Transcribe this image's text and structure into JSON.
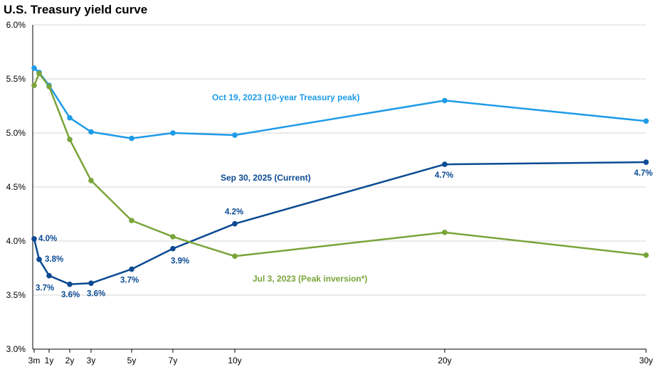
{
  "chart_data": {
    "type": "line",
    "title": "U.S. Treasury yield curve",
    "xlabel": "",
    "ylabel": "",
    "ylim": [
      3.0,
      6.0
    ],
    "y_ticks": [
      "3.0%",
      "3.5%",
      "4.0%",
      "4.5%",
      "5.0%",
      "5.5%",
      "6.0%"
    ],
    "grid": "horizontal",
    "x_ticks": [
      {
        "label": "3m",
        "years": 0.25
      },
      {
        "label": "1y",
        "years": 1
      },
      {
        "label": "2y",
        "years": 2
      },
      {
        "label": "3y",
        "years": 3
      },
      {
        "label": "5y",
        "years": 5
      },
      {
        "label": "7y",
        "years": 7
      },
      {
        "label": "10y",
        "years": 10
      },
      {
        "label": "20y",
        "years": 20
      },
      {
        "label": "30y",
        "years": 30
      }
    ],
    "x_years": [
      0.25,
      0.5,
      1,
      2,
      3,
      5,
      7,
      10,
      20,
      30
    ],
    "series": [
      {
        "name": "Oct 19, 2023 (10-year Treasury peak)",
        "color": "#1e9be8",
        "values": [
          5.6,
          5.56,
          5.44,
          5.14,
          5.01,
          4.95,
          5.0,
          4.98,
          5.3,
          5.11
        ]
      },
      {
        "name": "Sep 30, 2025 (Current)",
        "color": "#0b4a93",
        "values": [
          4.02,
          3.83,
          3.68,
          3.6,
          3.61,
          3.74,
          3.93,
          4.16,
          4.71,
          4.73
        ],
        "data_labels": [
          "4.0%",
          "3.8%",
          "3.7%",
          "3.6%",
          "3.6%",
          "3.7%",
          "3.9%",
          "4.2%",
          "4.7%",
          "4.7%"
        ]
      },
      {
        "name": "Jul 3, 2023 (Peak inversion*)",
        "color": "#7aa43a",
        "values": [
          5.44,
          5.55,
          5.43,
          4.94,
          4.56,
          4.19,
          4.04,
          3.86,
          4.08,
          3.87
        ]
      }
    ]
  }
}
